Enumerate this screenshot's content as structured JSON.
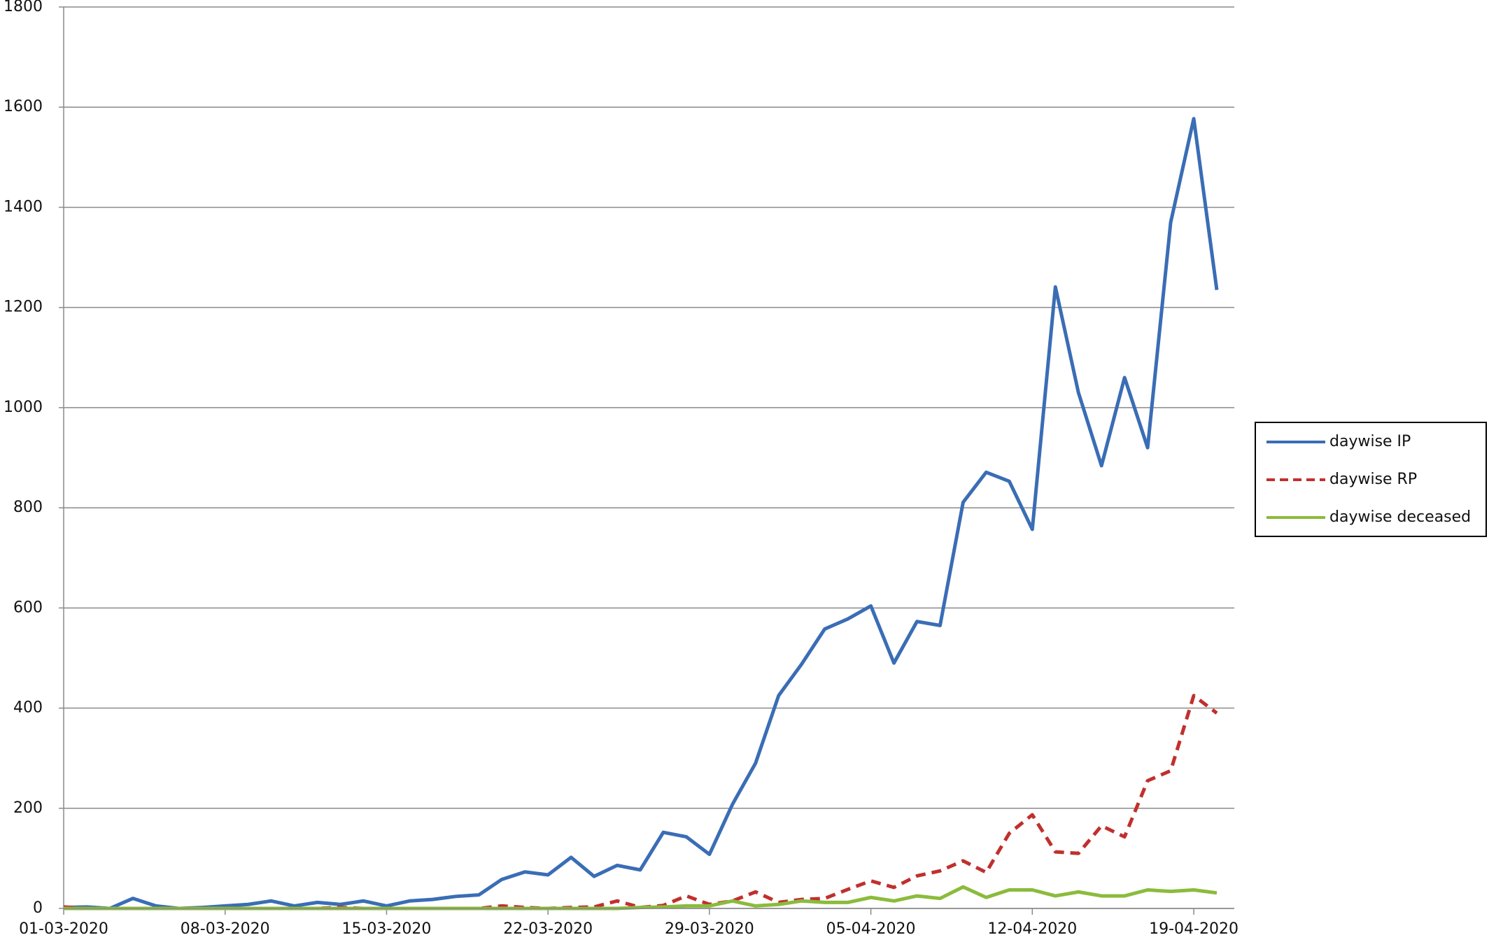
{
  "chart_data": {
    "type": "line",
    "categories": [
      "01-03-2020",
      null,
      null,
      null,
      null,
      null,
      null,
      "08-03-2020",
      null,
      null,
      null,
      null,
      null,
      null,
      "15-03-2020",
      null,
      null,
      null,
      null,
      null,
      null,
      "22-03-2020",
      null,
      null,
      null,
      null,
      null,
      null,
      "29-03-2020",
      null,
      null,
      null,
      null,
      null,
      null,
      "05-04-2020",
      null,
      null,
      null,
      null,
      null,
      null,
      "12-04-2020",
      null,
      null,
      null,
      null,
      null,
      null,
      "19-04-2020",
      null
    ],
    "series": [
      {
        "name": "daywise IP",
        "color": "#3a6db5",
        "dash": false,
        "values": [
          2,
          3,
          0,
          20,
          5,
          0,
          2,
          5,
          8,
          15,
          5,
          12,
          8,
          15,
          5,
          15,
          18,
          24,
          27,
          58,
          73,
          67,
          102,
          64,
          86,
          77,
          152,
          143,
          108,
          208,
          290,
          425,
          488,
          558,
          578,
          604,
          490,
          573,
          565,
          811,
          871,
          853,
          757,
          1241,
          1030,
          884,
          1060,
          920,
          1370,
          1577,
          1235
        ]
      },
      {
        "name": "daywise RP",
        "color": "#c0302e",
        "dash": true,
        "values": [
          3,
          0,
          0,
          0,
          0,
          0,
          0,
          0,
          0,
          0,
          0,
          0,
          2,
          0,
          0,
          0,
          0,
          0,
          0,
          5,
          2,
          0,
          2,
          3,
          15,
          2,
          6,
          25,
          8,
          15,
          33,
          12,
          18,
          20,
          38,
          55,
          42,
          65,
          75,
          95,
          72,
          150,
          187,
          113,
          110,
          165,
          143,
          255,
          275,
          425,
          390
        ]
      },
      {
        "name": "daywise deceased",
        "color": "#8bbb3c",
        "dash": false,
        "values": [
          0,
          0,
          0,
          0,
          0,
          0,
          0,
          0,
          0,
          0,
          0,
          0,
          0,
          0,
          0,
          0,
          0,
          0,
          0,
          0,
          0,
          0,
          0,
          0,
          0,
          2,
          3,
          5,
          5,
          15,
          5,
          8,
          15,
          12,
          12,
          22,
          15,
          25,
          20,
          43,
          22,
          37,
          37,
          25,
          33,
          25,
          25,
          37,
          34,
          37,
          31
        ]
      }
    ],
    "ylim": [
      0,
      1800
    ],
    "yticks": [
      0,
      200,
      400,
      600,
      800,
      1000,
      1200,
      1400,
      1600,
      1800
    ],
    "grid": true,
    "legend": "right"
  }
}
